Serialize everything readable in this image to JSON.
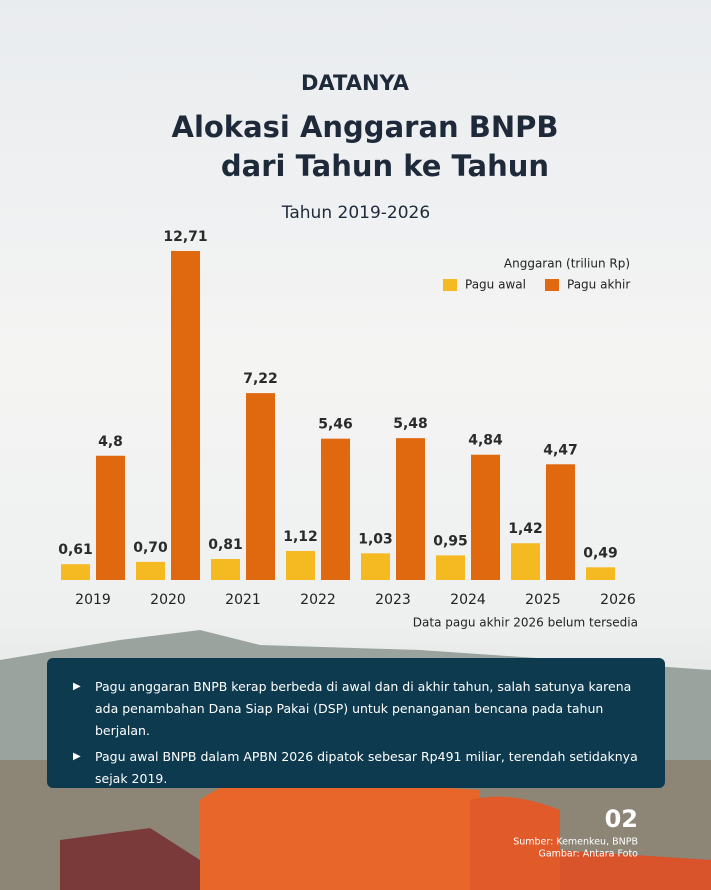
{
  "header": {
    "kicker": "DATANYA",
    "page_number": "02"
  },
  "chart_data": {
    "type": "bar",
    "title": [
      "Alokasi Anggaran BNPB",
      "dari Tahun ke Tahun"
    ],
    "subtitle": "Tahun 2019-2026",
    "legend_title": "Anggaran (triliun Rp)",
    "categories": [
      "2019",
      "2020",
      "2021",
      "2022",
      "2023",
      "2024",
      "2025",
      "2026"
    ],
    "series": [
      {
        "name": "Pagu awal",
        "color": "#f5b921",
        "values": [
          0.61,
          0.7,
          0.81,
          1.12,
          1.03,
          0.95,
          1.42,
          0.49
        ],
        "value_labels": [
          "0,61",
          "0,70",
          "0,81",
          "1,12",
          "1,03",
          "0,95",
          "1,42",
          "0,49"
        ]
      },
      {
        "name": "Pagu akhir",
        "color": "#e0680f",
        "values": [
          4.8,
          12.71,
          7.22,
          5.46,
          5.48,
          4.84,
          4.47,
          null
        ],
        "value_labels": [
          "4,8",
          "12,71",
          "7,22",
          "5,46",
          "5,48",
          "4,84",
          "4,47",
          null
        ]
      }
    ],
    "note": "Data pagu akhir 2026 belum tersedia"
  },
  "notes": [
    "Pagu anggaran BNPB kerap berbeda di awal dan di akhir tahun, salah satunya karena ada penambahan Dana Siap Pakai (DSP) untuk penanganan bencana pada tahun berjalan.",
    "Pagu awal BNPB dalam APBN 2026 dipatok sebesar Rp491 miliar, terendah setidaknya sejak 2019."
  ],
  "footer": {
    "source": "Sumber: Kemenkeu, BNPB",
    "image_credit": "Gambar: Antara Foto"
  }
}
